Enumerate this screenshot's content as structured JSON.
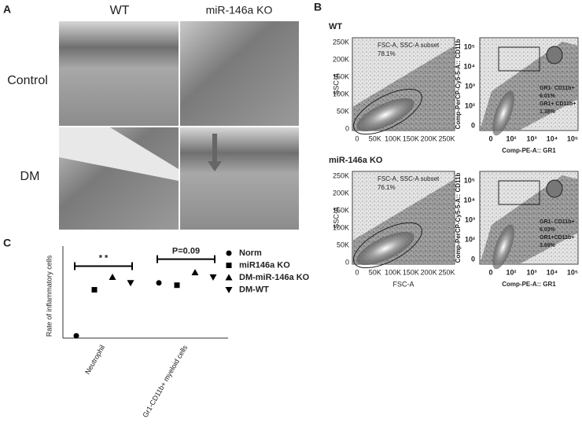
{
  "panel_labels": [
    "A",
    "B",
    "C"
  ],
  "histology": {
    "columns": [
      "WT",
      "miR-146a KO"
    ],
    "rows": [
      "Control",
      "DM"
    ]
  },
  "flow": {
    "plots": [
      {
        "title": "WT",
        "gate_label": "FSC-A, SSC-A subset",
        "gate_percent": "78.1%",
        "quadrant_text": [
          "GR1- CD11b+",
          "6.01%",
          "GR1+ CD11b+",
          "1.38%"
        ]
      },
      {
        "title": "miR-146a KO",
        "gate_label": "FSC-A, SSC-A subset",
        "gate_percent": "76.1%",
        "quadrant_text": [
          "GR1- CD11b+",
          "6.03%",
          "GR1+CD11b+",
          "3.69%"
        ]
      }
    ],
    "scatter_y_label": "SSC-A",
    "scatter_x_label": "FSC-A",
    "scatter_ticks": [
      "0",
      "50K",
      "100K",
      "150K",
      "200K",
      "250K"
    ],
    "marker_y_label": "Comp-PerCP-Cy5-5-A:: CD11b",
    "marker_x_label": "Comp-PE-A:: GR1",
    "log_ticks": [
      "0",
      "10²",
      "10³",
      "10⁴",
      "10⁵"
    ]
  },
  "chart_data": {
    "type": "dot",
    "y_label": "Rate of inflammatory cells",
    "categories": [
      "Neutrophil",
      "Gr1-CD11b+ myeloid cells"
    ],
    "series": [
      {
        "name": "Norm",
        "marker": "circle",
        "color": "#000000",
        "values": [
          1.2,
          5.8
        ]
      },
      {
        "name": "miR146a KO",
        "marker": "square",
        "color": "#000000",
        "values": [
          5.2,
          5.6
        ]
      },
      {
        "name": "DM-miR-146a KO",
        "marker": "triangle-up",
        "color": "#000000",
        "values": [
          6.3,
          6.7
        ]
      },
      {
        "name": "DM-WT",
        "marker": "triangle-down",
        "color": "#000000",
        "values": [
          5.8,
          6.3
        ]
      }
    ],
    "ylim": [
      1,
      9
    ],
    "annotations": [
      {
        "text": "* *",
        "category": 0
      },
      {
        "text": "P=0.09",
        "category": 1
      }
    ]
  }
}
